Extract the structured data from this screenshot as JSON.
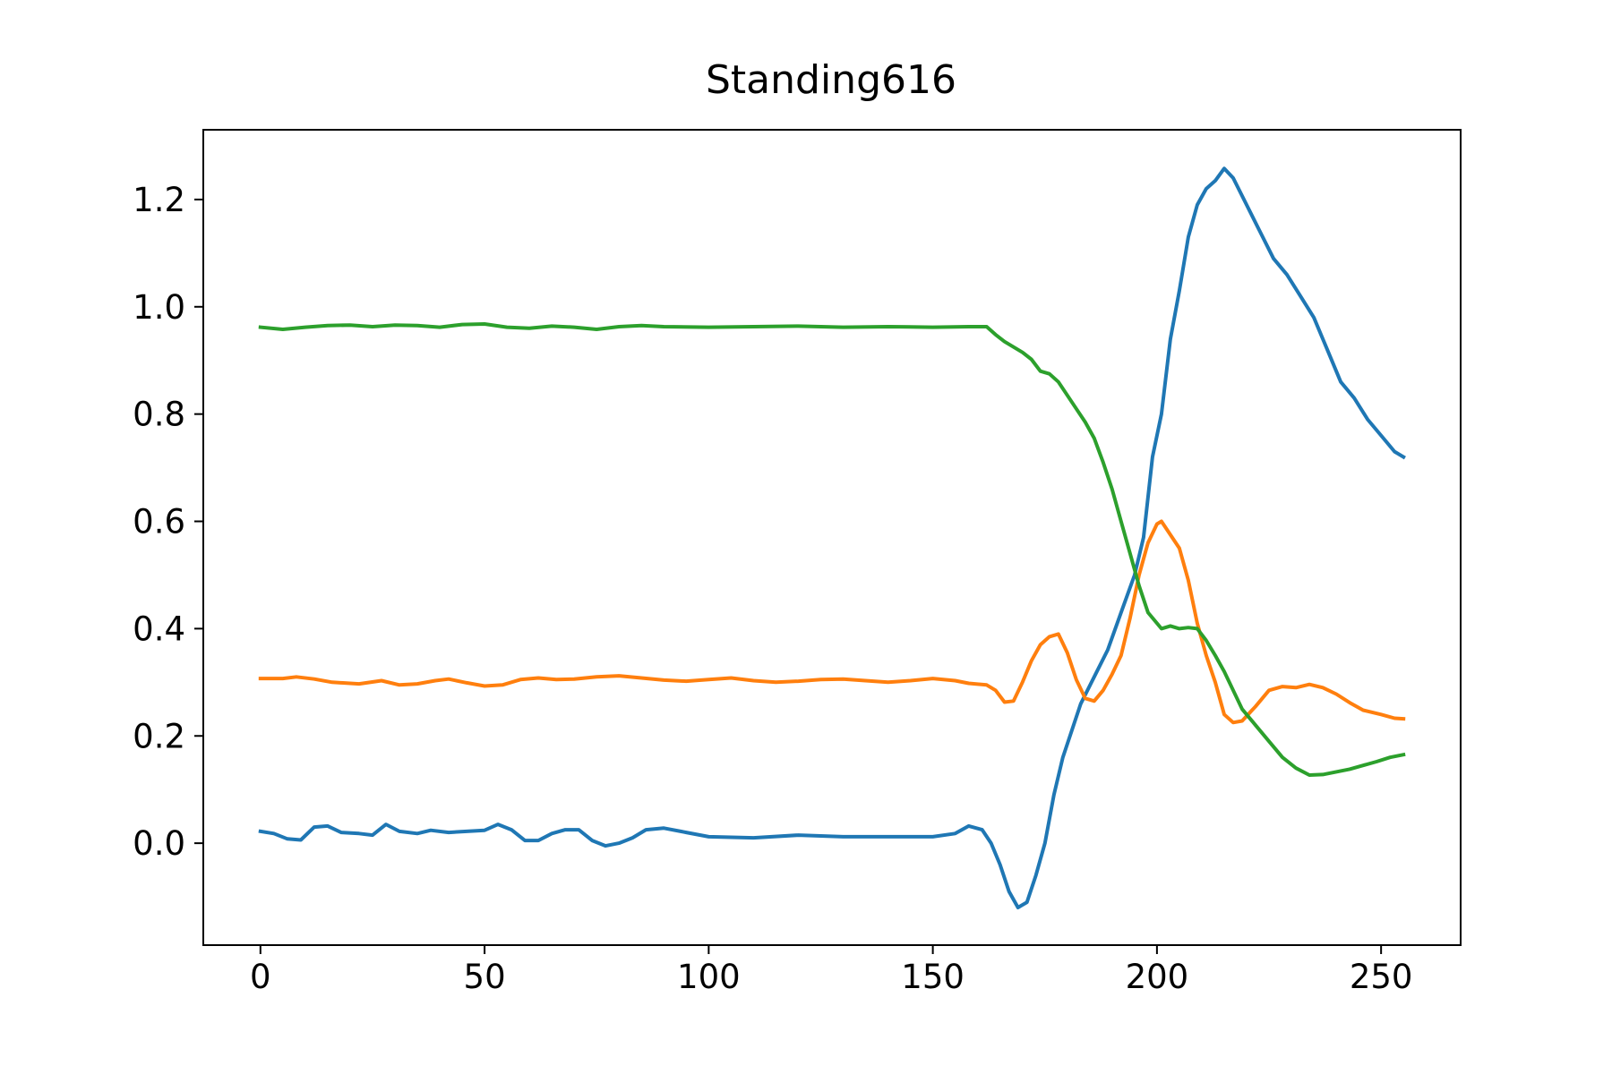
{
  "chart_data": {
    "type": "line",
    "title": "Standing616",
    "xlabel": "",
    "ylabel": "",
    "xlim": [
      -12.75,
      267.75
    ],
    "ylim": [
      -0.19,
      1.33
    ],
    "xticks": [
      0,
      50,
      100,
      150,
      200,
      250
    ],
    "xtick_labels": [
      "0",
      "50",
      "100",
      "150",
      "200",
      "250"
    ],
    "yticks": [
      0.0,
      0.2,
      0.4,
      0.6,
      0.8,
      1.0,
      1.2
    ],
    "ytick_labels": [
      "0.0",
      "0.2",
      "0.4",
      "0.6",
      "0.8",
      "1.0",
      "1.2"
    ],
    "grid": false,
    "legend": "none",
    "series": [
      {
        "color": "#1f77b4",
        "points": [
          [
            0,
            0.022
          ],
          [
            3,
            0.018
          ],
          [
            6,
            0.008
          ],
          [
            9,
            0.006
          ],
          [
            12,
            0.03
          ],
          [
            15,
            0.032
          ],
          [
            18,
            0.02
          ],
          [
            22,
            0.018
          ],
          [
            25,
            0.015
          ],
          [
            28,
            0.035
          ],
          [
            31,
            0.022
          ],
          [
            35,
            0.018
          ],
          [
            38,
            0.024
          ],
          [
            42,
            0.02
          ],
          [
            46,
            0.022
          ],
          [
            50,
            0.024
          ],
          [
            53,
            0.035
          ],
          [
            56,
            0.025
          ],
          [
            59,
            0.005
          ],
          [
            62,
            0.005
          ],
          [
            65,
            0.018
          ],
          [
            68,
            0.025
          ],
          [
            71,
            0.025
          ],
          [
            74,
            0.005
          ],
          [
            77,
            -0.005
          ],
          [
            80,
            0.0
          ],
          [
            83,
            0.01
          ],
          [
            86,
            0.025
          ],
          [
            90,
            0.028
          ],
          [
            95,
            0.02
          ],
          [
            100,
            0.012
          ],
          [
            110,
            0.01
          ],
          [
            120,
            0.015
          ],
          [
            130,
            0.012
          ],
          [
            140,
            0.012
          ],
          [
            150,
            0.012
          ],
          [
            155,
            0.018
          ],
          [
            158,
            0.032
          ],
          [
            161,
            0.025
          ],
          [
            163,
            0.0
          ],
          [
            165,
            -0.04
          ],
          [
            167,
            -0.09
          ],
          [
            169,
            -0.12
          ],
          [
            171,
            -0.11
          ],
          [
            173,
            -0.06
          ],
          [
            175,
            0.0
          ],
          [
            177,
            0.09
          ],
          [
            179,
            0.16
          ],
          [
            181,
            0.21
          ],
          [
            183,
            0.26
          ],
          [
            186,
            0.31
          ],
          [
            189,
            0.36
          ],
          [
            192,
            0.43
          ],
          [
            195,
            0.5
          ],
          [
            197,
            0.57
          ],
          [
            199,
            0.72
          ],
          [
            201,
            0.8
          ],
          [
            203,
            0.94
          ],
          [
            205,
            1.03
          ],
          [
            207,
            1.13
          ],
          [
            209,
            1.19
          ],
          [
            211,
            1.22
          ],
          [
            213,
            1.235
          ],
          [
            215,
            1.258
          ],
          [
            217,
            1.24
          ],
          [
            220,
            1.19
          ],
          [
            223,
            1.14
          ],
          [
            226,
            1.09
          ],
          [
            229,
            1.06
          ],
          [
            232,
            1.02
          ],
          [
            235,
            0.98
          ],
          [
            238,
            0.92
          ],
          [
            241,
            0.86
          ],
          [
            244,
            0.83
          ],
          [
            247,
            0.79
          ],
          [
            250,
            0.76
          ],
          [
            253,
            0.73
          ],
          [
            255,
            0.72
          ]
        ]
      },
      {
        "color": "#ff7f0e",
        "points": [
          [
            0,
            0.307
          ],
          [
            5,
            0.307
          ],
          [
            8,
            0.31
          ],
          [
            12,
            0.306
          ],
          [
            16,
            0.3
          ],
          [
            22,
            0.297
          ],
          [
            27,
            0.303
          ],
          [
            31,
            0.295
          ],
          [
            35,
            0.297
          ],
          [
            39,
            0.303
          ],
          [
            42,
            0.306
          ],
          [
            46,
            0.299
          ],
          [
            50,
            0.293
          ],
          [
            54,
            0.295
          ],
          [
            58,
            0.305
          ],
          [
            62,
            0.308
          ],
          [
            66,
            0.305
          ],
          [
            70,
            0.306
          ],
          [
            75,
            0.31
          ],
          [
            80,
            0.312
          ],
          [
            85,
            0.308
          ],
          [
            90,
            0.304
          ],
          [
            95,
            0.302
          ],
          [
            100,
            0.305
          ],
          [
            105,
            0.308
          ],
          [
            110,
            0.303
          ],
          [
            115,
            0.3
          ],
          [
            120,
            0.302
          ],
          [
            125,
            0.305
          ],
          [
            130,
            0.306
          ],
          [
            135,
            0.303
          ],
          [
            140,
            0.3
          ],
          [
            145,
            0.303
          ],
          [
            150,
            0.307
          ],
          [
            155,
            0.303
          ],
          [
            158,
            0.298
          ],
          [
            162,
            0.295
          ],
          [
            164,
            0.285
          ],
          [
            166,
            0.263
          ],
          [
            168,
            0.265
          ],
          [
            170,
            0.3
          ],
          [
            172,
            0.34
          ],
          [
            174,
            0.37
          ],
          [
            176,
            0.385
          ],
          [
            178,
            0.39
          ],
          [
            180,
            0.355
          ],
          [
            182,
            0.305
          ],
          [
            184,
            0.27
          ],
          [
            186,
            0.265
          ],
          [
            188,
            0.285
          ],
          [
            190,
            0.315
          ],
          [
            192,
            0.35
          ],
          [
            194,
            0.42
          ],
          [
            196,
            0.5
          ],
          [
            198,
            0.56
          ],
          [
            200,
            0.595
          ],
          [
            201,
            0.6
          ],
          [
            203,
            0.575
          ],
          [
            205,
            0.55
          ],
          [
            207,
            0.49
          ],
          [
            209,
            0.41
          ],
          [
            211,
            0.35
          ],
          [
            213,
            0.3
          ],
          [
            215,
            0.24
          ],
          [
            217,
            0.225
          ],
          [
            219,
            0.228
          ],
          [
            222,
            0.255
          ],
          [
            225,
            0.285
          ],
          [
            228,
            0.292
          ],
          [
            231,
            0.29
          ],
          [
            234,
            0.296
          ],
          [
            237,
            0.29
          ],
          [
            240,
            0.278
          ],
          [
            243,
            0.262
          ],
          [
            246,
            0.248
          ],
          [
            250,
            0.24
          ],
          [
            253,
            0.233
          ],
          [
            255,
            0.232
          ]
        ]
      },
      {
        "color": "#2ca02c",
        "points": [
          [
            0,
            0.962
          ],
          [
            5,
            0.958
          ],
          [
            10,
            0.962
          ],
          [
            15,
            0.965
          ],
          [
            20,
            0.966
          ],
          [
            25,
            0.963
          ],
          [
            30,
            0.966
          ],
          [
            35,
            0.965
          ],
          [
            40,
            0.962
          ],
          [
            45,
            0.967
          ],
          [
            50,
            0.968
          ],
          [
            55,
            0.962
          ],
          [
            60,
            0.96
          ],
          [
            65,
            0.964
          ],
          [
            70,
            0.962
          ],
          [
            75,
            0.958
          ],
          [
            80,
            0.963
          ],
          [
            85,
            0.965
          ],
          [
            90,
            0.963
          ],
          [
            100,
            0.962
          ],
          [
            110,
            0.963
          ],
          [
            120,
            0.964
          ],
          [
            130,
            0.962
          ],
          [
            140,
            0.963
          ],
          [
            150,
            0.962
          ],
          [
            158,
            0.963
          ],
          [
            162,
            0.963
          ],
          [
            164,
            0.948
          ],
          [
            166,
            0.935
          ],
          [
            168,
            0.925
          ],
          [
            170,
            0.915
          ],
          [
            172,
            0.902
          ],
          [
            174,
            0.88
          ],
          [
            176,
            0.875
          ],
          [
            178,
            0.86
          ],
          [
            180,
            0.835
          ],
          [
            182,
            0.81
          ],
          [
            184,
            0.785
          ],
          [
            186,
            0.755
          ],
          [
            188,
            0.71
          ],
          [
            190,
            0.66
          ],
          [
            192,
            0.6
          ],
          [
            194,
            0.54
          ],
          [
            196,
            0.48
          ],
          [
            198,
            0.43
          ],
          [
            200,
            0.41
          ],
          [
            201,
            0.4
          ],
          [
            203,
            0.405
          ],
          [
            205,
            0.4
          ],
          [
            207,
            0.402
          ],
          [
            209,
            0.4
          ],
          [
            211,
            0.378
          ],
          [
            213,
            0.35
          ],
          [
            215,
            0.32
          ],
          [
            217,
            0.285
          ],
          [
            219,
            0.25
          ],
          [
            222,
            0.22
          ],
          [
            225,
            0.19
          ],
          [
            228,
            0.16
          ],
          [
            231,
            0.14
          ],
          [
            234,
            0.127
          ],
          [
            237,
            0.128
          ],
          [
            240,
            0.133
          ],
          [
            243,
            0.138
          ],
          [
            246,
            0.145
          ],
          [
            249,
            0.152
          ],
          [
            252,
            0.16
          ],
          [
            255,
            0.165
          ]
        ]
      }
    ]
  }
}
